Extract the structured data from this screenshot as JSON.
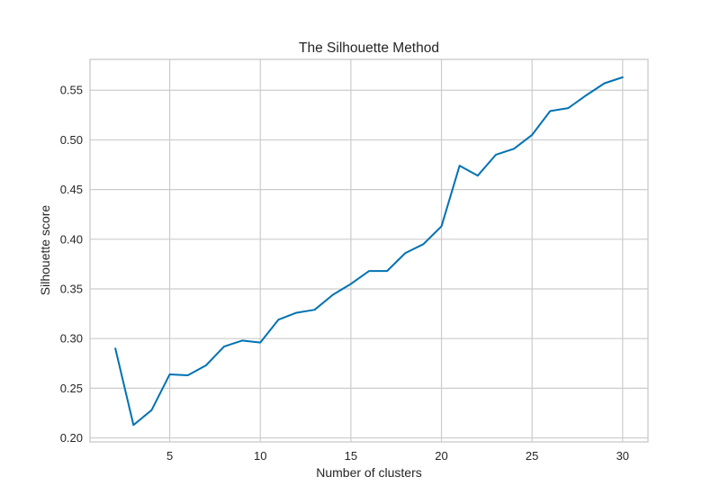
{
  "chart_data": {
    "type": "line",
    "title": "The Silhouette Method",
    "xlabel": "Number of clusters",
    "ylabel": "Silhouette score",
    "xlim": [
      0.6,
      31.4
    ],
    "ylim": [
      0.196,
      0.581
    ],
    "xticks": [
      5,
      10,
      15,
      20,
      25,
      30
    ],
    "yticks": [
      0.2,
      0.25,
      0.3,
      0.35,
      0.4,
      0.45,
      0.5,
      0.55
    ],
    "grid": true,
    "colors": {
      "series": "#0072b2",
      "grid": "#cccccc",
      "text": "#262626"
    },
    "series": [
      {
        "x": [
          2,
          3,
          4,
          5,
          6,
          7,
          8,
          9,
          10,
          11,
          12,
          13,
          14,
          15,
          16,
          17,
          18,
          19,
          20,
          21,
          22,
          23,
          24,
          25,
          26,
          27,
          28,
          29,
          30
        ],
        "values": [
          0.29,
          0.213,
          0.228,
          0.264,
          0.263,
          0.273,
          0.292,
          0.298,
          0.296,
          0.319,
          0.326,
          0.329,
          0.344,
          0.355,
          0.368,
          0.368,
          0.386,
          0.395,
          0.413,
          0.474,
          0.464,
          0.485,
          0.491,
          0.505,
          0.529,
          0.532,
          0.545,
          0.557,
          0.563
        ]
      }
    ]
  }
}
